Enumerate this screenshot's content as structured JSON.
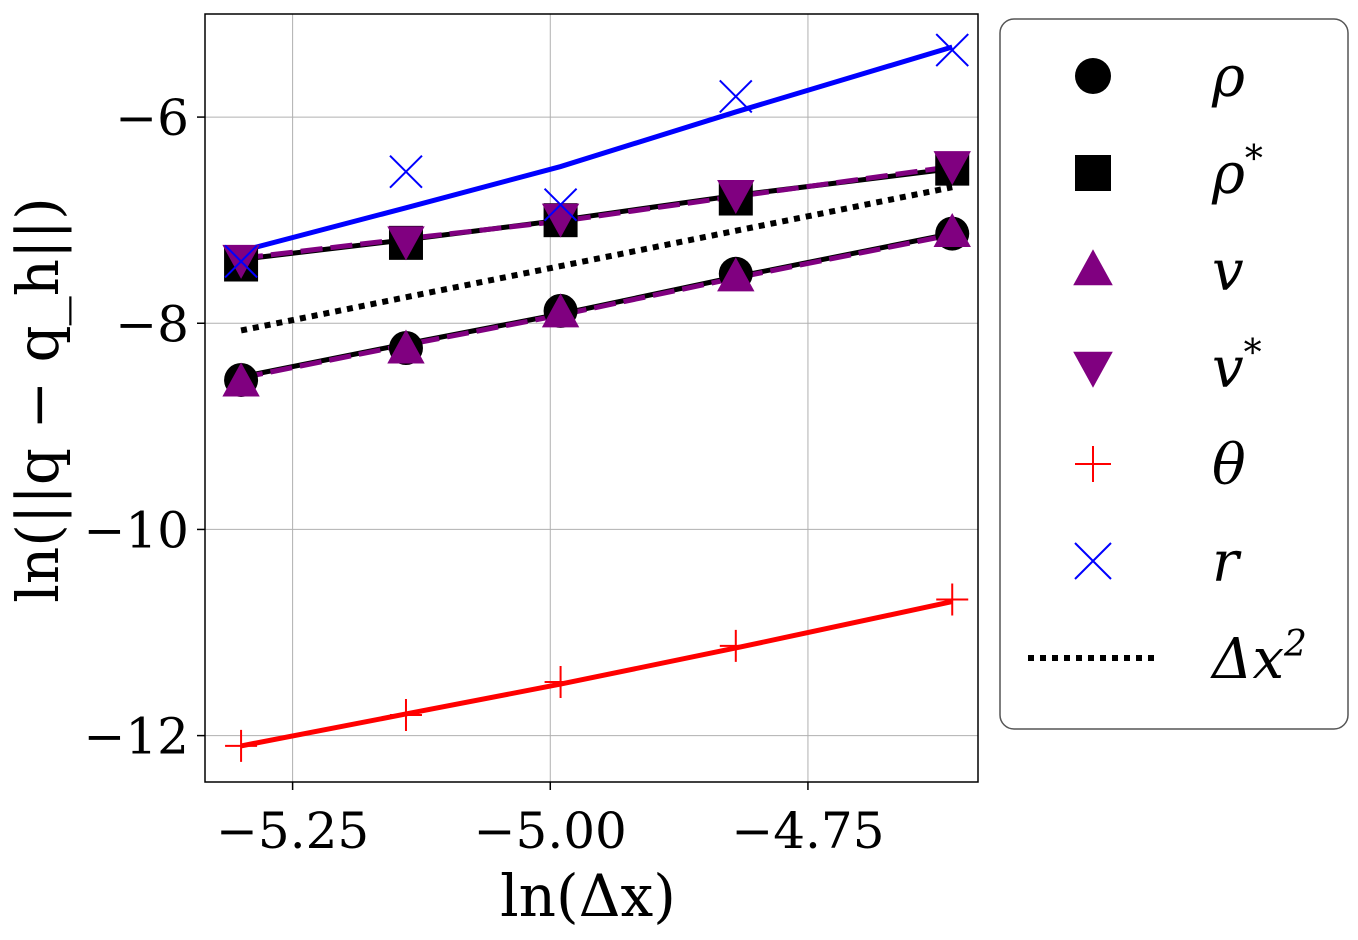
{
  "chart_data": {
    "type": "line",
    "xlabel": "ln(Δx)",
    "ylabel": "ln(||q − q_h||)",
    "xlim": [
      -5.335,
      -4.585
    ],
    "ylim": [
      -12.45,
      -5.0
    ],
    "grid": true,
    "legend_position": "outside-right",
    "xticks": [
      -5.25,
      -5.0,
      -4.75
    ],
    "xtick_labels": [
      "−5.25",
      "−5.00",
      "−4.75"
    ],
    "yticks": [
      -6,
      -8,
      -10,
      -12
    ],
    "ytick_labels": [
      "−6",
      "−8",
      "−10",
      "−12"
    ],
    "x": [
      -5.3,
      -5.14,
      -4.99,
      -4.82,
      -4.61
    ],
    "series": [
      {
        "name": "ρ",
        "symbol": "ρ",
        "sup": "",
        "marker": "circle",
        "color": "#000000",
        "points": [
          -8.55,
          -8.24,
          -7.88,
          -7.52,
          -7.13
        ],
        "fit": [
          -8.52,
          -8.2,
          -7.91,
          -7.55,
          -7.13
        ],
        "fit_style": "solid"
      },
      {
        "name": "ρ*",
        "symbol": "ρ",
        "sup": "*",
        "marker": "square",
        "color": "#000000",
        "points": [
          -7.43,
          -7.22,
          -7.0,
          -6.79,
          -6.5
        ],
        "fit": [
          -7.38,
          -7.19,
          -7.0,
          -6.76,
          -6.5
        ],
        "fit_style": "solid"
      },
      {
        "name": "v",
        "symbol": "v",
        "sup": "",
        "marker": "triangle-up",
        "color": "#800080",
        "points": [
          -8.57,
          -8.25,
          -7.9,
          -7.55,
          -7.12
        ],
        "fit": [
          -8.53,
          -8.21,
          -7.92,
          -7.56,
          -7.14
        ],
        "fit_style": "dashed"
      },
      {
        "name": "v*",
        "symbol": "v",
        "sup": "*",
        "marker": "triangle-down",
        "color": "#800080",
        "points": [
          -7.38,
          -7.2,
          -6.98,
          -6.75,
          -6.47
        ],
        "fit": [
          -7.37,
          -7.18,
          -7.01,
          -6.77,
          -6.48
        ],
        "fit_style": "dashed"
      },
      {
        "name": "θ",
        "symbol": "θ",
        "sup": "",
        "marker": "plus",
        "color": "#ff0000",
        "points": [
          -12.1,
          -11.8,
          -11.48,
          -11.13,
          -10.68
        ],
        "fit": [
          -12.1,
          -11.79,
          -11.5,
          -11.15,
          -10.7
        ],
        "fit_style": "solid"
      },
      {
        "name": "r",
        "symbol": "r",
        "sup": "",
        "marker": "x",
        "color": "#0000ff",
        "points": [
          -7.4,
          -6.53,
          -6.85,
          -5.8,
          -5.35
        ],
        "fit": [
          -7.3,
          -6.88,
          -6.48,
          -5.95,
          -5.32
        ],
        "fit_style": "solid"
      }
    ],
    "reference": {
      "name": "Δx²",
      "symbol": "Δx",
      "sup": "2",
      "color": "#000000",
      "style": "dotted",
      "x": [
        -5.3,
        -4.61
      ],
      "y": [
        -8.07,
        -6.68
      ]
    }
  }
}
